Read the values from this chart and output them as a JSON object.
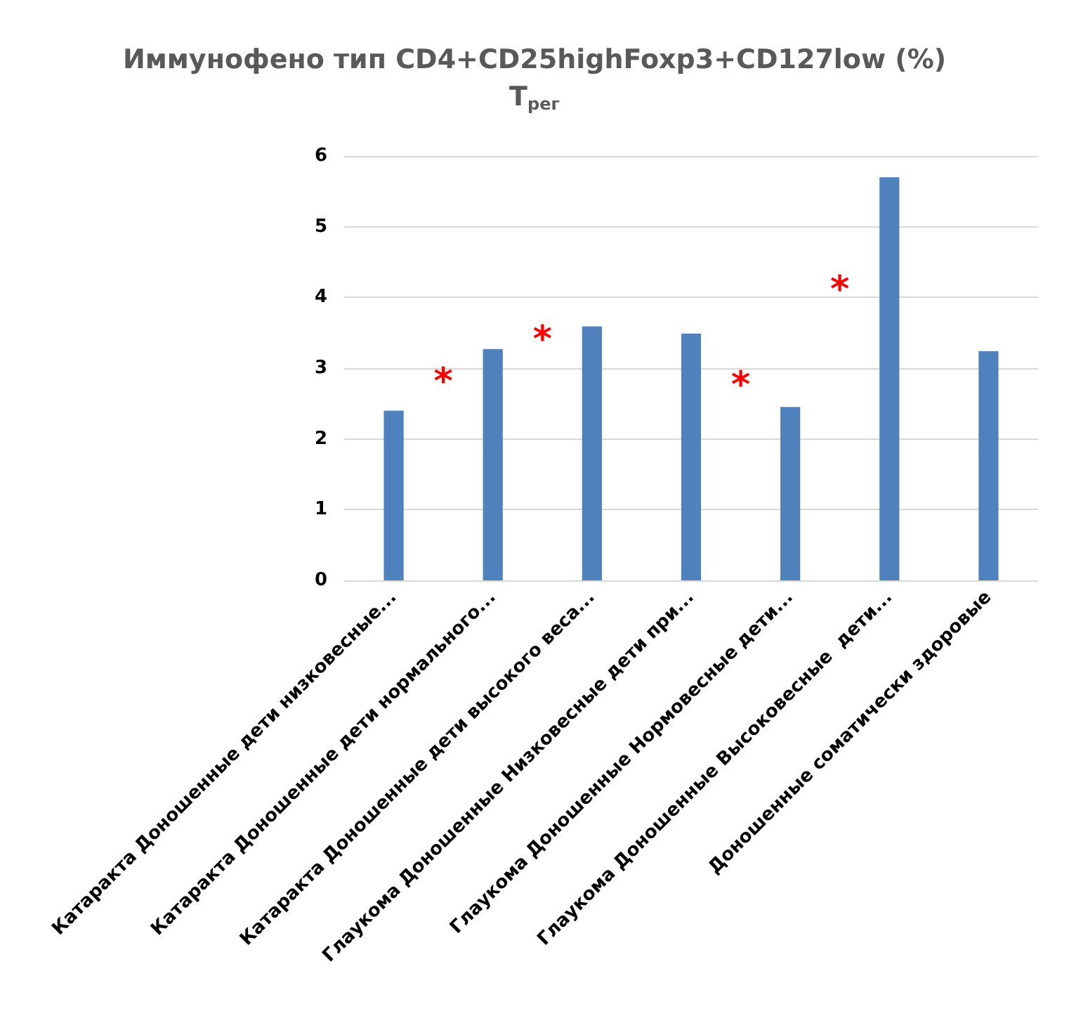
{
  "chart_data": {
    "type": "bar",
    "title": "Иммунофено тип CD4+CD25highFoxp3+CD127low (%)",
    "subtitle": "T$_{рег}$",
    "categories": [
      "Катаракта Доношенные дети низковесные...",
      "Катаракта Доношенные дети нормального...",
      "Катаракта Доношенные дети высокого веса...",
      "Глаукома Доношенные Низковесные дети при...",
      "Глаукома Доношенные Нормовесные дети...",
      "Глаукома Доношенные Высоковесные  дети...",
      "Доношенные соматически здоровые"
    ],
    "values": [
      2.4,
      3.27,
      3.59,
      3.49,
      2.45,
      5.7,
      3.24
    ],
    "color": "#4f81bd",
    "ylim": [
      0,
      6
    ],
    "yticks": [
      0,
      1,
      2,
      3,
      4,
      5,
      6
    ],
    "grid": "y",
    "annotations": [
      "*",
      "*",
      "*",
      "*"
    ]
  }
}
